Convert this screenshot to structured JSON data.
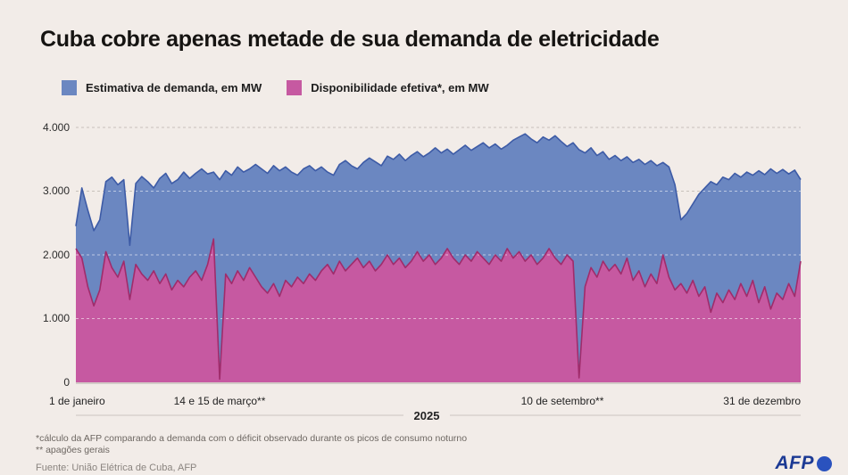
{
  "title": "Cuba cobre apenas metade de sua demanda de eletricidade",
  "legend": [
    {
      "label": "Estimativa de demanda, em MW",
      "color": "#6b87c1"
    },
    {
      "label": "Disponibilidade efetiva*, em MW",
      "color": "#c659a1"
    }
  ],
  "footnotes": {
    "line1": "*cálculo da AFP comparando a demanda com o déficit observado durante os picos de consumo noturno",
    "line2": "** apagões gerais"
  },
  "source": "Fuente: União Elétrica de Cuba, AFP",
  "logo_text": "AFP",
  "colors": {
    "background": "#f2ece8",
    "demand_fill": "#6b87c1",
    "demand_stroke": "#3d5ba6",
    "availability_fill": "#c659a1",
    "availability_stroke": "#a02c6b",
    "grid_gray": "#c8c1bb",
    "grid_white": "rgba(255,255,255,0.55)",
    "baseline": "#b3aca6",
    "axis_line": "#ccc5bf"
  },
  "chart_data": {
    "type": "area",
    "title": "Cuba cobre apenas metade de sua demanda de eletricidade",
    "ylabel": "MW",
    "ylim": [
      0,
      4000
    ],
    "y_ticks": [
      "4.000",
      "3.000",
      "2.000",
      "1.000",
      "0"
    ],
    "grid": true,
    "legend_position": "top-left",
    "x_axis_labels": [
      "1 de janeiro",
      "14 e 15 de março**",
      "10 de setembro**",
      "31 de dezembro"
    ],
    "year_label": "2025",
    "x_start_day": 0,
    "x_step_days": 3,
    "x_total_days": 364,
    "annotations": [
      "14 e 15 de março**: disponibilidade cai a quase 0 (apagão geral)",
      "10 de setembro**: disponibilidade cai a quase 0 (apagão geral)"
    ],
    "series": [
      {
        "name": "Estimativa de demanda, em MW",
        "fill": "#6b87c1",
        "stroke": "#3d5ba6",
        "values": [
          2450,
          3050,
          2700,
          2380,
          2550,
          3150,
          3220,
          3100,
          3180,
          2150,
          3120,
          3230,
          3150,
          3050,
          3200,
          3280,
          3120,
          3180,
          3300,
          3200,
          3280,
          3350,
          3270,
          3300,
          3180,
          3320,
          3250,
          3380,
          3300,
          3350,
          3420,
          3350,
          3280,
          3400,
          3320,
          3380,
          3300,
          3250,
          3350,
          3400,
          3320,
          3380,
          3300,
          3250,
          3420,
          3480,
          3400,
          3350,
          3450,
          3520,
          3460,
          3400,
          3550,
          3500,
          3580,
          3480,
          3560,
          3620,
          3540,
          3600,
          3680,
          3600,
          3660,
          3580,
          3650,
          3720,
          3640,
          3700,
          3760,
          3680,
          3740,
          3660,
          3720,
          3800,
          3850,
          3900,
          3820,
          3760,
          3850,
          3800,
          3870,
          3780,
          3700,
          3760,
          3650,
          3600,
          3680,
          3560,
          3620,
          3500,
          3560,
          3480,
          3540,
          3450,
          3500,
          3420,
          3480,
          3400,
          3450,
          3380,
          3100,
          2550,
          2650,
          2800,
          2950,
          3050,
          3150,
          3100,
          3220,
          3180,
          3280,
          3220,
          3300,
          3250,
          3320,
          3260,
          3350,
          3280,
          3340,
          3270,
          3330,
          3180
        ]
      },
      {
        "name": "Disponibilidade efetiva*, em MW",
        "fill": "#c659a1",
        "stroke": "#a02c6b",
        "values": [
          2100,
          1950,
          1500,
          1200,
          1450,
          2050,
          1800,
          1650,
          1900,
          1300,
          1850,
          1700,
          1600,
          1750,
          1550,
          1700,
          1450,
          1600,
          1500,
          1650,
          1750,
          1600,
          1850,
          2250,
          50,
          1700,
          1550,
          1750,
          1600,
          1800,
          1650,
          1500,
          1400,
          1550,
          1350,
          1600,
          1500,
          1650,
          1550,
          1700,
          1600,
          1750,
          1850,
          1700,
          1900,
          1750,
          1850,
          1950,
          1800,
          1900,
          1750,
          1850,
          2000,
          1850,
          1950,
          1800,
          1900,
          2050,
          1900,
          2000,
          1850,
          1950,
          2100,
          1950,
          1850,
          2000,
          1900,
          2050,
          1950,
          1850,
          2000,
          1900,
          2100,
          1950,
          2050,
          1900,
          2000,
          1850,
          1950,
          2100,
          1950,
          1850,
          2000,
          1900,
          70,
          1500,
          1800,
          1650,
          1900,
          1750,
          1850,
          1700,
          1950,
          1600,
          1750,
          1500,
          1700,
          1550,
          2000,
          1650,
          1450,
          1550,
          1400,
          1600,
          1350,
          1500,
          1100,
          1400,
          1250,
          1450,
          1300,
          1550,
          1350,
          1600,
          1250,
          1500,
          1150,
          1400,
          1300,
          1550,
          1350,
          1900
        ]
      }
    ]
  }
}
